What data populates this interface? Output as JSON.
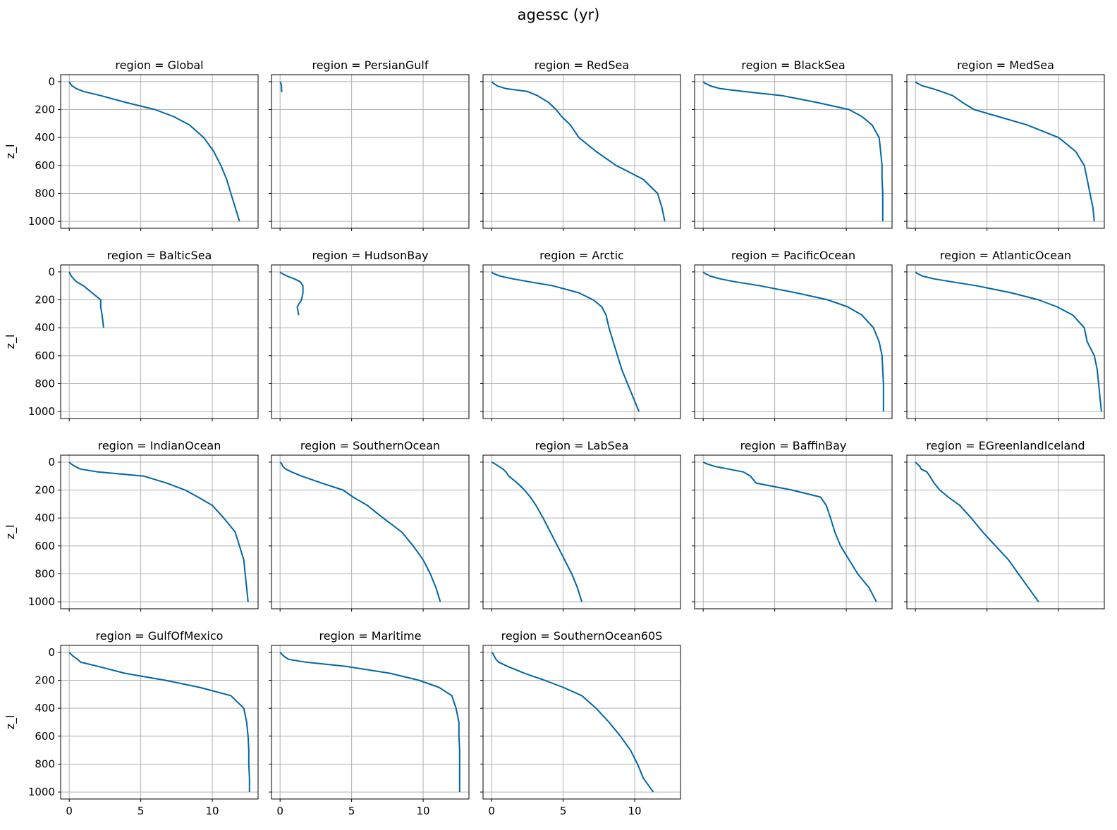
{
  "figure": {
    "title": "agessc (yr)"
  },
  "style": {
    "line_color": "#0067a5",
    "grid_color": "#b0b0b0",
    "frame_color": "#000000"
  },
  "chart_data": [
    {
      "type": "line",
      "title": "region = Global",
      "ylabel": "z_l",
      "grid": true,
      "xlim": [
        -0.6,
        13.2
      ],
      "ylim": [
        1050,
        -50
      ],
      "xticks": [
        0,
        5,
        10
      ],
      "yticks": [
        0,
        200,
        400,
        600,
        800,
        1000
      ],
      "series": [
        {
          "x": [
            0,
            0.05,
            0.2,
            0.5,
            1.0,
            2.2,
            4.0,
            6.0,
            7.3,
            8.4,
            9.4,
            10.1,
            10.6,
            11.0,
            11.3,
            11.6,
            11.9
          ],
          "y": [
            0,
            10,
            30,
            50,
            70,
            100,
            150,
            200,
            250,
            310,
            400,
            500,
            600,
            700,
            800,
            900,
            1000
          ]
        }
      ]
    },
    {
      "type": "line",
      "title": "region = PersianGulf",
      "ylabel": "",
      "grid": true,
      "xlim": [
        -0.6,
        13.2
      ],
      "ylim": [
        1050,
        -50
      ],
      "xticks": [
        0,
        5,
        10
      ],
      "yticks": [
        0,
        200,
        400,
        600,
        800,
        1000
      ],
      "series": [
        {
          "x": [
            0,
            0.05,
            0.1,
            0.1,
            0.12
          ],
          "y": [
            0,
            10,
            30,
            50,
            75
          ]
        }
      ]
    },
    {
      "type": "line",
      "title": "region = RedSea",
      "ylabel": "",
      "grid": true,
      "xlim": [
        -0.6,
        13.2
      ],
      "ylim": [
        1050,
        -50
      ],
      "xticks": [
        0,
        5,
        10
      ],
      "yticks": [
        0,
        200,
        400,
        600,
        800,
        1000
      ],
      "series": [
        {
          "x": [
            0,
            0.1,
            0.4,
            1.0,
            2.5,
            3.2,
            4.0,
            4.5,
            4.9,
            5.5,
            6.1,
            7.3,
            8.7,
            10.6,
            11.6,
            11.9,
            12.1
          ],
          "y": [
            0,
            10,
            30,
            50,
            70,
            100,
            150,
            200,
            250,
            310,
            400,
            500,
            600,
            700,
            800,
            900,
            1000
          ]
        }
      ]
    },
    {
      "type": "line",
      "title": "region = BlackSea",
      "ylabel": "",
      "grid": true,
      "xlim": [
        -0.6,
        13.2
      ],
      "ylim": [
        1050,
        -50
      ],
      "xticks": [
        0,
        5,
        10
      ],
      "yticks": [
        0,
        200,
        400,
        600,
        800,
        1000
      ],
      "series": [
        {
          "x": [
            0,
            0.1,
            0.5,
            1.2,
            2.8,
            5.5,
            8.0,
            10.2,
            11.1,
            11.8,
            12.3,
            12.4,
            12.5,
            12.5,
            12.55,
            12.55,
            12.55
          ],
          "y": [
            0,
            10,
            30,
            50,
            70,
            100,
            150,
            200,
            250,
            310,
            400,
            500,
            600,
            700,
            800,
            900,
            1000
          ]
        }
      ]
    },
    {
      "type": "line",
      "title": "region = MedSea",
      "ylabel": "",
      "grid": true,
      "xlim": [
        -0.6,
        13.2
      ],
      "ylim": [
        1050,
        -50
      ],
      "xticks": [
        0,
        5,
        10
      ],
      "yticks": [
        0,
        200,
        400,
        600,
        800,
        1000
      ],
      "series": [
        {
          "x": [
            0,
            0.1,
            0.5,
            1.2,
            1.8,
            2.6,
            3.3,
            4.1,
            5.8,
            7.8,
            10.0,
            11.2,
            11.8,
            12.0,
            12.2,
            12.4,
            12.5
          ],
          "y": [
            0,
            10,
            30,
            50,
            70,
            100,
            150,
            200,
            250,
            310,
            400,
            500,
            600,
            700,
            800,
            900,
            1000
          ]
        }
      ]
    },
    {
      "type": "line",
      "title": "region = BalticSea",
      "ylabel": "z_l",
      "grid": true,
      "xlim": [
        -0.6,
        13.2
      ],
      "ylim": [
        1050,
        -50
      ],
      "xticks": [
        0,
        5,
        10
      ],
      "yticks": [
        0,
        200,
        400,
        600,
        800,
        1000
      ],
      "series": [
        {
          "x": [
            0,
            0.05,
            0.15,
            0.3,
            0.5,
            1.0,
            1.6,
            2.2,
            2.2,
            2.3,
            2.4
          ],
          "y": [
            0,
            10,
            30,
            50,
            70,
            100,
            150,
            200,
            250,
            310,
            400
          ]
        }
      ]
    },
    {
      "type": "line",
      "title": "region = HudsonBay",
      "ylabel": "",
      "grid": true,
      "xlim": [
        -0.6,
        13.2
      ],
      "ylim": [
        1050,
        -50
      ],
      "xticks": [
        0,
        5,
        10
      ],
      "yticks": [
        0,
        200,
        400,
        600,
        800,
        1000
      ],
      "series": [
        {
          "x": [
            0,
            0.1,
            0.5,
            1.0,
            1.4,
            1.6,
            1.6,
            1.5,
            1.2,
            1.3
          ],
          "y": [
            0,
            10,
            30,
            50,
            70,
            100,
            150,
            200,
            250,
            310
          ]
        }
      ]
    },
    {
      "type": "line",
      "title": "region = Arctic",
      "ylabel": "",
      "grid": true,
      "xlim": [
        -0.6,
        13.2
      ],
      "ylim": [
        1050,
        -50
      ],
      "xticks": [
        0,
        5,
        10
      ],
      "yticks": [
        0,
        200,
        400,
        600,
        800,
        1000
      ],
      "series": [
        {
          "x": [
            0,
            0.1,
            0.6,
            1.5,
            2.6,
            4.3,
            6.1,
            7.1,
            7.7,
            8.0,
            8.2,
            8.5,
            8.8,
            9.1,
            9.5,
            9.9,
            10.3
          ],
          "y": [
            0,
            10,
            30,
            50,
            70,
            100,
            150,
            200,
            250,
            310,
            400,
            500,
            600,
            700,
            800,
            900,
            1000
          ]
        }
      ]
    },
    {
      "type": "line",
      "title": "region = PacificOcean",
      "ylabel": "",
      "grid": true,
      "xlim": [
        -0.6,
        13.2
      ],
      "ylim": [
        1050,
        -50
      ],
      "xticks": [
        0,
        5,
        10
      ],
      "yticks": [
        0,
        200,
        400,
        600,
        800,
        1000
      ],
      "series": [
        {
          "x": [
            0,
            0.1,
            0.5,
            1.2,
            2.2,
            4.0,
            6.5,
            8.7,
            10.1,
            11.1,
            11.9,
            12.3,
            12.5,
            12.55,
            12.6,
            12.6,
            12.6
          ],
          "y": [
            0,
            10,
            30,
            50,
            70,
            100,
            150,
            200,
            250,
            310,
            400,
            500,
            600,
            700,
            800,
            900,
            1000
          ]
        }
      ]
    },
    {
      "type": "line",
      "title": "region = AtlanticOcean",
      "ylabel": "",
      "grid": true,
      "xlim": [
        -0.6,
        13.2
      ],
      "ylim": [
        1050,
        -50
      ],
      "xticks": [
        0,
        5,
        10
      ],
      "yticks": [
        0,
        200,
        400,
        600,
        800,
        1000
      ],
      "series": [
        {
          "x": [
            0,
            0.1,
            0.5,
            1.3,
            2.5,
            4.3,
            6.7,
            8.6,
            9.9,
            11.0,
            11.8,
            12.0,
            12.5,
            12.7,
            12.8,
            12.9,
            13.0
          ],
          "y": [
            0,
            10,
            30,
            50,
            70,
            100,
            150,
            200,
            250,
            310,
            400,
            500,
            600,
            700,
            800,
            900,
            1000
          ]
        }
      ]
    },
    {
      "type": "line",
      "title": "region = IndianOcean",
      "ylabel": "z_l",
      "grid": true,
      "xlim": [
        -0.6,
        13.2
      ],
      "ylim": [
        1050,
        -50
      ],
      "xticks": [
        0,
        5,
        10
      ],
      "yticks": [
        0,
        200,
        400,
        600,
        800,
        1000
      ],
      "series": [
        {
          "x": [
            0,
            0.1,
            0.4,
            0.8,
            2.0,
            5.2,
            6.8,
            8.1,
            9.0,
            10.0,
            10.8,
            11.6,
            11.9,
            12.2,
            12.3,
            12.4,
            12.5
          ],
          "y": [
            0,
            10,
            30,
            50,
            70,
            100,
            150,
            200,
            250,
            310,
            400,
            500,
            600,
            700,
            800,
            900,
            1000
          ]
        }
      ]
    },
    {
      "type": "line",
      "title": "region = SouthernOcean",
      "ylabel": "",
      "grid": true,
      "xlim": [
        -0.6,
        13.2
      ],
      "ylim": [
        1050,
        -50
      ],
      "xticks": [
        0,
        5,
        10
      ],
      "yticks": [
        0,
        200,
        400,
        600,
        800,
        1000
      ],
      "series": [
        {
          "x": [
            0,
            0.1,
            0.2,
            0.4,
            0.8,
            1.5,
            2.9,
            4.4,
            5.1,
            6.1,
            7.2,
            8.5,
            9.3,
            10.0,
            10.5,
            10.9,
            11.2
          ],
          "y": [
            0,
            10,
            30,
            50,
            70,
            100,
            150,
            200,
            250,
            310,
            400,
            500,
            600,
            700,
            800,
            900,
            1000
          ]
        }
      ]
    },
    {
      "type": "line",
      "title": "region = LabSea",
      "ylabel": "",
      "grid": true,
      "xlim": [
        -0.6,
        13.2
      ],
      "ylim": [
        1050,
        -50
      ],
      "xticks": [
        0,
        5,
        10
      ],
      "yticks": [
        0,
        200,
        400,
        600,
        800,
        1000
      ],
      "series": [
        {
          "x": [
            0,
            0.2,
            0.5,
            0.8,
            1.0,
            1.2,
            1.8,
            2.3,
            2.7,
            3.1,
            3.6,
            4.1,
            4.6,
            5.1,
            5.6,
            6.0,
            6.3
          ],
          "y": [
            0,
            10,
            30,
            50,
            70,
            100,
            150,
            200,
            250,
            310,
            400,
            500,
            600,
            700,
            800,
            900,
            1000
          ]
        }
      ]
    },
    {
      "type": "line",
      "title": "region = BaffinBay",
      "ylabel": "",
      "grid": true,
      "xlim": [
        -0.6,
        13.2
      ],
      "ylim": [
        1050,
        -50
      ],
      "xticks": [
        0,
        5,
        10
      ],
      "yticks": [
        0,
        200,
        400,
        600,
        800,
        1000
      ],
      "series": [
        {
          "x": [
            0,
            0.2,
            0.8,
            1.8,
            2.8,
            3.3,
            3.7,
            6.2,
            8.2,
            8.6,
            8.9,
            9.2,
            9.6,
            10.2,
            10.8,
            11.6,
            12.1
          ],
          "y": [
            0,
            10,
            30,
            50,
            70,
            100,
            150,
            200,
            250,
            310,
            400,
            500,
            600,
            700,
            800,
            900,
            1000
          ]
        }
      ]
    },
    {
      "type": "line",
      "title": "region = EGreenlandIceland",
      "ylabel": "",
      "grid": true,
      "xlim": [
        -0.6,
        13.2
      ],
      "ylim": [
        1050,
        -50
      ],
      "xticks": [
        0,
        5,
        10
      ],
      "yticks": [
        0,
        200,
        400,
        600,
        800,
        1000
      ],
      "series": [
        {
          "x": [
            0,
            0.1,
            0.3,
            0.4,
            0.8,
            1.0,
            1.3,
            1.7,
            2.3,
            3.1,
            3.9,
            4.7,
            5.6,
            6.5,
            7.2,
            7.9,
            8.6
          ],
          "y": [
            0,
            10,
            30,
            50,
            70,
            100,
            150,
            200,
            250,
            310,
            400,
            500,
            600,
            700,
            800,
            900,
            1000
          ]
        }
      ]
    },
    {
      "type": "line",
      "title": "region = GulfOfMexico",
      "ylabel": "z_l",
      "grid": true,
      "xlim": [
        -0.6,
        13.2
      ],
      "ylim": [
        1050,
        -50
      ],
      "xticks": [
        0,
        5,
        10
      ],
      "yticks": [
        0,
        200,
        400,
        600,
        800,
        1000
      ],
      "series": [
        {
          "x": [
            0,
            0.1,
            0.3,
            0.6,
            0.8,
            2.0,
            3.9,
            6.7,
            9.1,
            11.3,
            12.2,
            12.4,
            12.5,
            12.55,
            12.55,
            12.6,
            12.6
          ],
          "y": [
            0,
            10,
            30,
            50,
            70,
            100,
            150,
            200,
            250,
            310,
            400,
            500,
            600,
            700,
            800,
            900,
            1000
          ]
        }
      ]
    },
    {
      "type": "line",
      "title": "region = Maritime",
      "ylabel": "",
      "grid": true,
      "xlim": [
        -0.6,
        13.2
      ],
      "ylim": [
        1050,
        -50
      ],
      "xticks": [
        0,
        5,
        10
      ],
      "yticks": [
        0,
        200,
        400,
        600,
        800,
        1000
      ],
      "series": [
        {
          "x": [
            0,
            0.1,
            0.3,
            0.6,
            1.8,
            4.6,
            7.7,
            9.7,
            11.1,
            12.0,
            12.3,
            12.5,
            12.5,
            12.55,
            12.55,
            12.55,
            12.55
          ],
          "y": [
            0,
            10,
            30,
            50,
            70,
            100,
            150,
            200,
            250,
            310,
            400,
            500,
            600,
            700,
            800,
            900,
            1000
          ]
        }
      ]
    },
    {
      "type": "line",
      "title": "region = SouthernOcean60S",
      "ylabel": "",
      "grid": true,
      "xlim": [
        -0.6,
        13.2
      ],
      "ylim": [
        1050,
        -50
      ],
      "xticks": [
        0,
        5,
        10
      ],
      "yticks": [
        0,
        200,
        400,
        600,
        800,
        1000
      ],
      "series": [
        {
          "x": [
            0,
            0.1,
            0.2,
            0.3,
            0.5,
            1.1,
            2.3,
            3.7,
            5.0,
            6.3,
            7.3,
            8.2,
            9.0,
            9.7,
            10.2,
            10.6,
            11.3
          ],
          "y": [
            0,
            10,
            30,
            50,
            70,
            100,
            150,
            200,
            250,
            310,
            400,
            500,
            600,
            700,
            800,
            900,
            1000
          ]
        }
      ]
    }
  ]
}
